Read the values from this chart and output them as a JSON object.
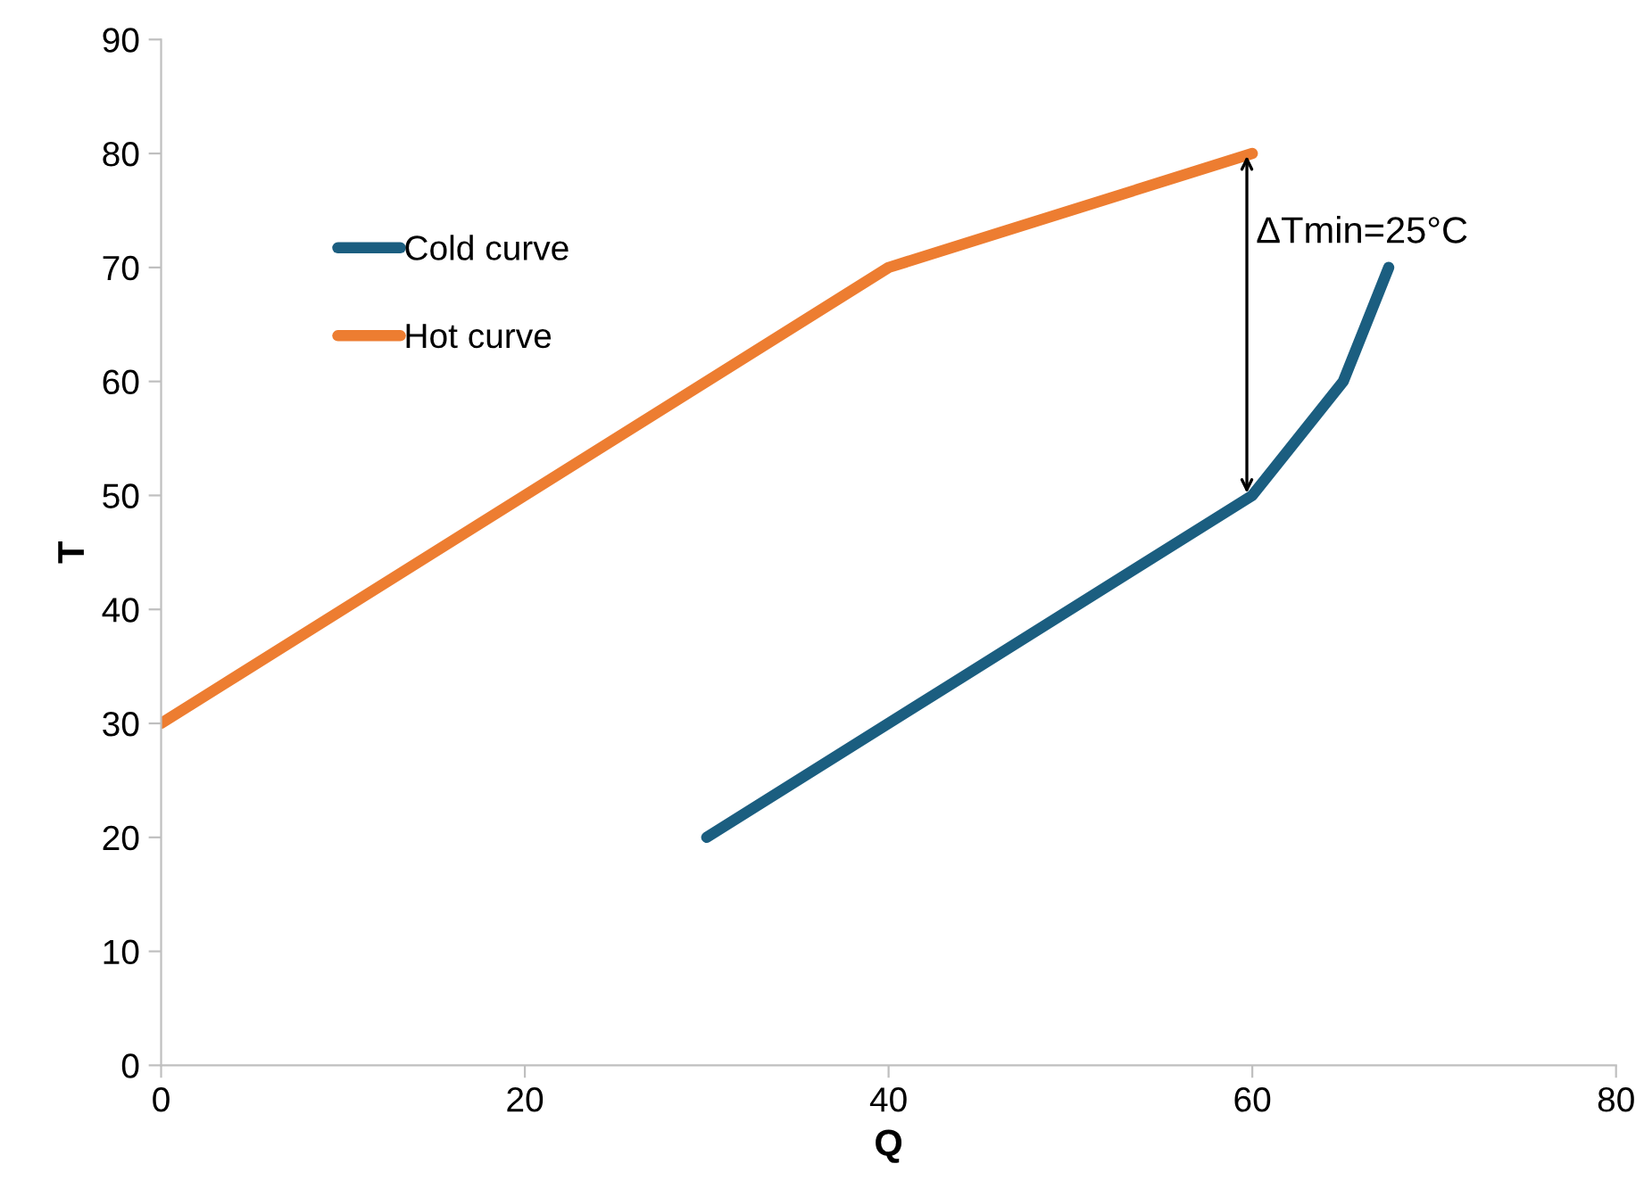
{
  "chart_data": {
    "type": "line",
    "xlabel": "Q",
    "ylabel": "T",
    "series": [
      {
        "name": "Cold curve",
        "color": "#1b5e80",
        "x": [
          30,
          60,
          65,
          67.5
        ],
        "values": [
          20,
          50,
          60,
          70
        ]
      },
      {
        "name": "Hot curve",
        "color": "#ed7d31",
        "x": [
          0,
          40,
          60
        ],
        "values": [
          30,
          70,
          80
        ]
      }
    ],
    "annotations": [
      {
        "text": "ΔTmin=25°C",
        "x": 60,
        "y": 80
      }
    ],
    "xlim": [
      0,
      80
    ],
    "xticks": [
      0,
      20,
      40,
      60,
      80
    ],
    "ylim": [
      0,
      90
    ],
    "yticks": [
      0,
      10,
      20,
      30,
      40,
      50,
      60,
      70,
      80,
      90
    ],
    "grid": false,
    "legend": "top left",
    "marker": "none",
    "line_style": "solid"
  }
}
